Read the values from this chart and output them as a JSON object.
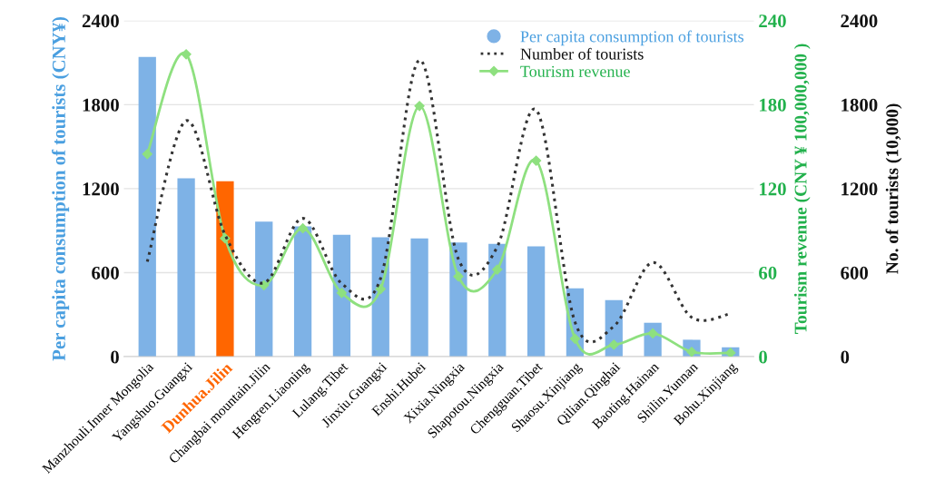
{
  "chart_data": {
    "type": "bar",
    "ylabel": "Per capita consumption of tourists (CNY¥)",
    "y2label": "Tourism revenue (CNY ¥ 100,000,000 )",
    "y3label": "No. of tourists (10,000)",
    "categories": [
      "Manzhouli.Inner Mongolia",
      "Yangshuo.Guangxi",
      "Dunhua.Jilin",
      "Changbai mountain.Jilin",
      "Hengren.Liaoning",
      "Lulang.Tibet",
      "Jinxiu.Guangxi",
      "Enshi.Hubei",
      "Xixia.Ningxia",
      "Shapotou.Ningxia",
      "Chengguan.Tibet",
      "Shaosu.Xinjiang",
      "Qilian.Qinghai",
      "Baoting.Hainan",
      "Shilin.Yunnan",
      "Bohu.Xinjiang"
    ],
    "series": [
      {
        "name": "Per capita consumption of tourists",
        "color": "#7eb2e6",
        "colors": [
          "#7eb2e6",
          "#7eb2e6",
          "#ff6600",
          "#7eb2e6",
          "#7eb2e6",
          "#7eb2e6",
          "#7eb2e6",
          "#7eb2e6",
          "#7eb2e6",
          "#7eb2e6",
          "#7eb2e6",
          "#7eb2e6",
          "#7eb2e6",
          "#7eb2e6",
          "#7eb2e6",
          "#7eb2e6"
        ],
        "values": [
          2140,
          1274,
          1252,
          964,
          930,
          871,
          853,
          845,
          816,
          806,
          788,
          488,
          403,
          242,
          121,
          67
        ]
      },
      {
        "name": "Number of tourists",
        "type": "line",
        "axis": "y3",
        "color": "#333333",
        "line_style": "dotted",
        "marker": "none",
        "values": [
          678,
          1685,
          870,
          526,
          988,
          522,
          559,
          2118,
          698,
          784,
          1763,
          246,
          217,
          672,
          280,
          307
        ]
      },
      {
        "name": "Tourism revenue",
        "type": "line",
        "axis": "y2",
        "color": "#8ee07f",
        "line_style": "solid",
        "marker": "diamond",
        "values": [
          144.7,
          216,
          84.5,
          51,
          91.6,
          45.5,
          48.3,
          179,
          57.3,
          62.2,
          140,
          12.8,
          8.5,
          16.6,
          3.4,
          2.7
        ]
      }
    ],
    "ylim": [
      0,
      2400
    ],
    "yticks": [
      0,
      600,
      1200,
      1800,
      2400
    ],
    "y2lim": [
      0,
      240
    ],
    "y2ticks": [
      0,
      60,
      120,
      180,
      240
    ],
    "y3lim": [
      0,
      2400
    ],
    "y3ticks": [
      0,
      600,
      1200,
      1800,
      2400
    ],
    "grid": "y",
    "legend": "top right"
  }
}
